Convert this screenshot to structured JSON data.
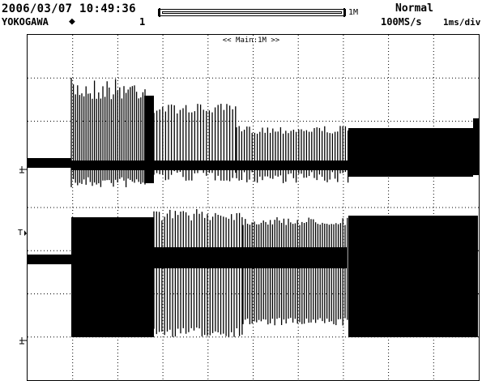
{
  "header": {
    "datetime": "2006/03/07 10:49:36",
    "brand": "YOKOGAWA",
    "trigger_channel": "1",
    "memory_length": "1M",
    "trigger_mode": "Normal",
    "sample_rate": "100MS/s",
    "timebase": "1ms/div"
  },
  "screen": {
    "zoom_label": "<< Main:1M >>",
    "ch1_marker": "T",
    "marker_glyph": "⏚"
  },
  "colors": {
    "trace": "#000000",
    "grid": "#000000",
    "background": "#ffffff"
  }
}
